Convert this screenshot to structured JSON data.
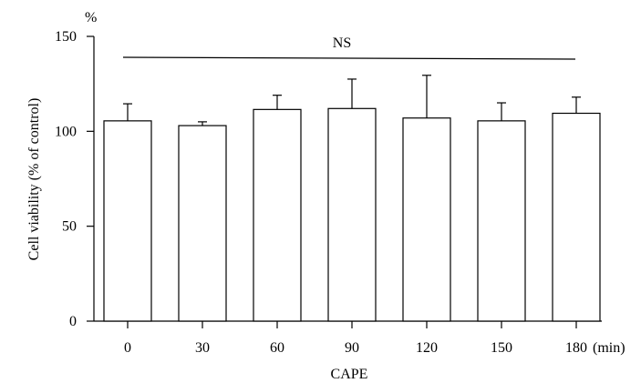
{
  "chart_data": {
    "type": "bar",
    "categories": [
      "0",
      "30",
      "60",
      "90",
      "120",
      "150",
      "180"
    ],
    "values": [
      105.5,
      103,
      111.5,
      112,
      107,
      105.5,
      109.5
    ],
    "error_upper": [
      114.5,
      105,
      119,
      127.5,
      129.5,
      115,
      118
    ],
    "xlabel": "CAPE",
    "x_unit": "(min)",
    "ylabel": "Cell viability (% of control)",
    "y_unit": "%",
    "ylim": [
      0,
      150
    ],
    "yticks": [
      "0",
      "50",
      "100",
      "150"
    ],
    "annotation": "NS",
    "grid": false
  },
  "colors": {
    "bar_fill": "#ffffff",
    "stroke": "#000000"
  }
}
